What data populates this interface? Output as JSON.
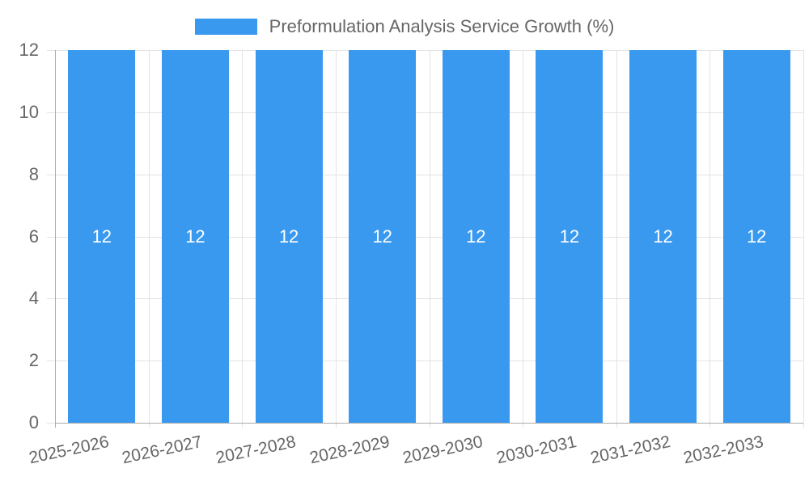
{
  "chart_data": {
    "type": "bar",
    "title": "Preformulation Analysis Service Growth (%)",
    "categories": [
      "2025-2026",
      "2026-2027",
      "2027-2028",
      "2028-2029",
      "2029-2030",
      "2030-2031",
      "2031-2032",
      "2032-2033"
    ],
    "values": [
      12,
      12,
      12,
      12,
      12,
      12,
      12,
      12
    ],
    "xlabel": "",
    "ylabel": "",
    "ylim": [
      0,
      12
    ],
    "yticks": [
      0,
      2,
      4,
      6,
      8,
      10,
      12
    ],
    "grid": true,
    "legend_position": "top",
    "bar_value_labels_shown": true
  },
  "legend": {
    "label": "Preformulation Analysis Service Growth (%)"
  },
  "colors": {
    "bar": "#3999ef",
    "bar_label": "#ffffff",
    "axis_text": "#666666",
    "grid_line": "#e3e3e3",
    "axis_line": "#acacac",
    "background": "#ffffff"
  }
}
